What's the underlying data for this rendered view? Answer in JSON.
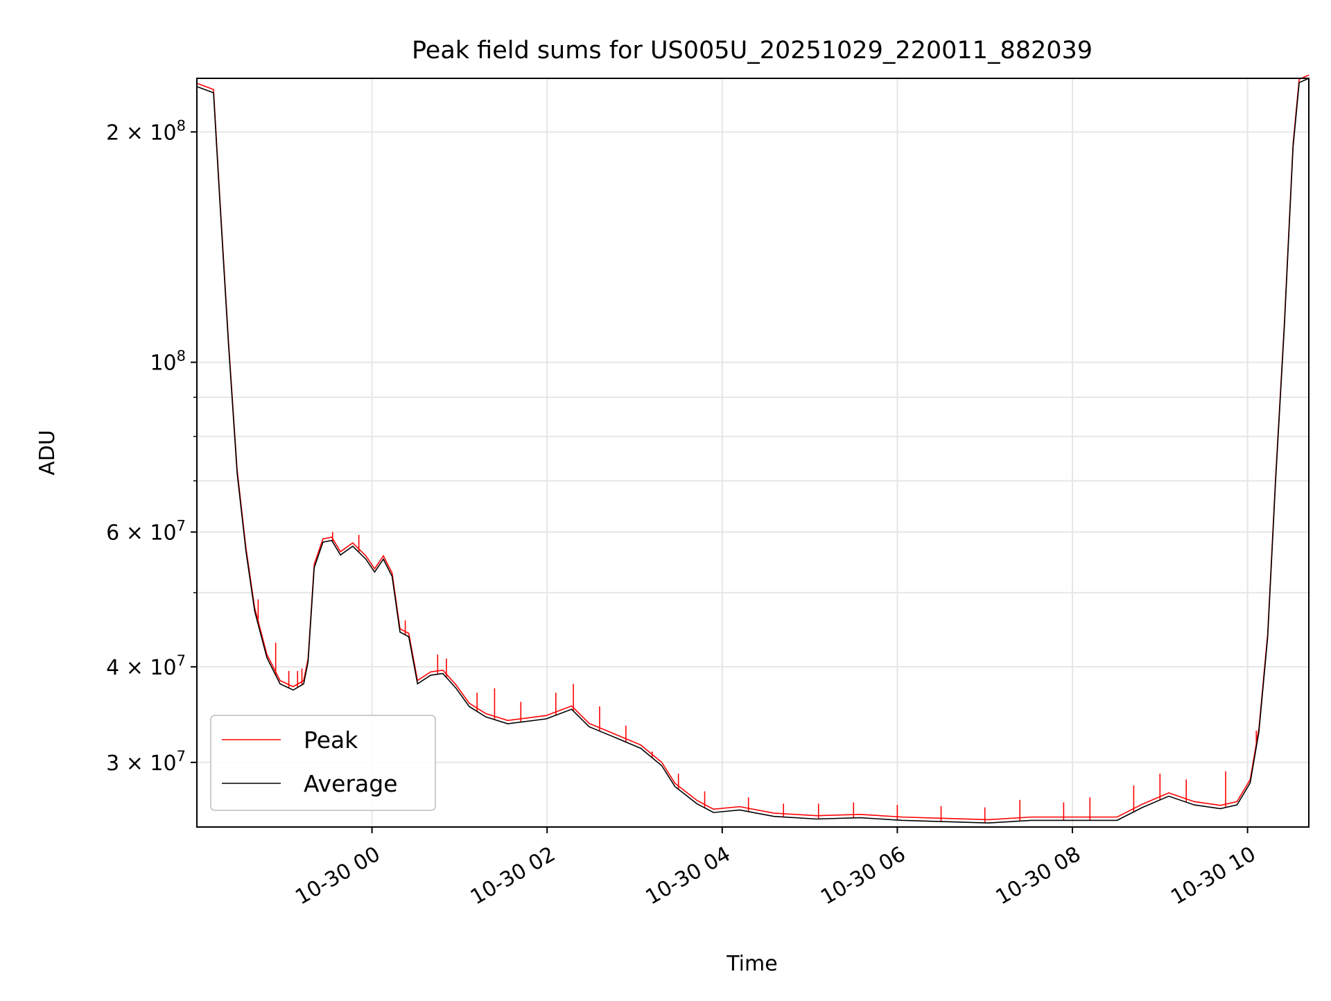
{
  "chart_data": {
    "type": "line",
    "title": "Peak field sums for US005U_20251029_220011_882039",
    "xlabel": "Time",
    "ylabel": "ADU",
    "x_units": "hours relative to 10-30 00:00",
    "xlim": [
      -2.0,
      10.7
    ],
    "ylim": [
      24700000,
      235000000
    ],
    "yscale": "log",
    "grid": true,
    "legend": {
      "placement": "lower-left",
      "entries": [
        {
          "label": "Peak",
          "color": "#ff0000"
        },
        {
          "label": "Average",
          "color": "#000000"
        }
      ]
    },
    "xticks": [
      {
        "value": 0,
        "label": "10-30 00"
      },
      {
        "value": 2,
        "label": "10-30 02"
      },
      {
        "value": 4,
        "label": "10-30 04"
      },
      {
        "value": 6,
        "label": "10-30 06"
      },
      {
        "value": 8,
        "label": "10-30 08"
      },
      {
        "value": 10,
        "label": "10-30 10"
      }
    ],
    "yticks_major": [
      {
        "value": 200000000,
        "base": "2 × 10",
        "exp": "8"
      },
      {
        "value": 100000000,
        "base": "10",
        "exp": "8"
      },
      {
        "value": 60000000,
        "base": "6 × 10",
        "exp": "7"
      },
      {
        "value": 40000000,
        "base": "4 × 10",
        "exp": "7"
      },
      {
        "value": 30000000,
        "base": "3 × 10",
        "exp": "7"
      }
    ],
    "yticks_minor": [
      50000000,
      70000000,
      80000000,
      90000000
    ],
    "series": [
      {
        "name": "Average",
        "color": "#000000",
        "points": [
          [
            -1.99,
            229000000.0
          ],
          [
            -1.81,
            225000000.0
          ],
          [
            -1.74,
            164000000.0
          ],
          [
            -1.64,
            106000000.0
          ],
          [
            -1.54,
            71600000.0
          ],
          [
            -1.44,
            56700000.0
          ],
          [
            -1.34,
            47300000.0
          ],
          [
            -1.2,
            41100000.0
          ],
          [
            -1.05,
            38000000.0
          ],
          [
            -0.9,
            37300000.0
          ],
          [
            -0.78,
            38000000.0
          ],
          [
            -0.73,
            40600000.0
          ],
          [
            -0.66,
            53900000.0
          ],
          [
            -0.56,
            58200000.0
          ],
          [
            -0.46,
            58500000.0
          ],
          [
            -0.36,
            56000000.0
          ],
          [
            -0.22,
            57500000.0
          ],
          [
            -0.07,
            55300000.0
          ],
          [
            0.03,
            53200000.0
          ],
          [
            0.13,
            55300000.0
          ],
          [
            0.23,
            52500000.0
          ],
          [
            0.32,
            44400000.0
          ],
          [
            0.42,
            43800000.0
          ],
          [
            0.52,
            38000000.0
          ],
          [
            0.67,
            39000000.0
          ],
          [
            0.81,
            39200000.0
          ],
          [
            0.96,
            37500000.0
          ],
          [
            1.11,
            35500000.0
          ],
          [
            1.3,
            34400000.0
          ],
          [
            1.55,
            33700000.0
          ],
          [
            1.99,
            34200000.0
          ],
          [
            2.28,
            35200000.0
          ],
          [
            2.48,
            33400000.0
          ],
          [
            2.73,
            32500000.0
          ],
          [
            3.07,
            31300000.0
          ],
          [
            3.31,
            29700000.0
          ],
          [
            3.46,
            27900000.0
          ],
          [
            3.71,
            26500000.0
          ],
          [
            3.9,
            25800000.0
          ],
          [
            4.2,
            26000000.0
          ],
          [
            4.59,
            25500000.0
          ],
          [
            5.08,
            25300000.0
          ],
          [
            5.57,
            25400000.0
          ],
          [
            6.06,
            25200000.0
          ],
          [
            6.55,
            25100000.0
          ],
          [
            7.04,
            25000000.0
          ],
          [
            7.53,
            25200000.0
          ],
          [
            8.02,
            25200000.0
          ],
          [
            8.51,
            25200000.0
          ],
          [
            8.8,
            26200000.0
          ],
          [
            9.1,
            27100000.0
          ],
          [
            9.39,
            26400000.0
          ],
          [
            9.69,
            26100000.0
          ],
          [
            9.88,
            26400000.0
          ],
          [
            10.03,
            28200000.0
          ],
          [
            10.13,
            32900000.0
          ],
          [
            10.23,
            43700000.0
          ],
          [
            10.32,
            69800000.0
          ],
          [
            10.42,
            111000000.0
          ],
          [
            10.52,
            191000000.0
          ],
          [
            10.59,
            232000000.0
          ],
          [
            10.7,
            235000000.0
          ]
        ]
      },
      {
        "name": "Peak",
        "color": "#ff0000",
        "spikes": [
          [
            -1.3,
            49000000.0
          ],
          [
            -1.1,
            43000000.0
          ],
          [
            -0.95,
            39500000.0
          ],
          [
            -0.85,
            39500000.0
          ],
          [
            -0.8,
            39800000.0
          ],
          [
            -0.45,
            60000000.0
          ],
          [
            -0.15,
            59500000.0
          ],
          [
            0.38,
            46000000.0
          ],
          [
            0.75,
            41500000.0
          ],
          [
            0.85,
            41000000.0
          ],
          [
            1.2,
            37000000.0
          ],
          [
            1.4,
            37500000.0
          ],
          [
            1.7,
            36000000.0
          ],
          [
            2.1,
            37000000.0
          ],
          [
            2.3,
            38000000.0
          ],
          [
            2.6,
            35500000.0
          ],
          [
            2.9,
            33500000.0
          ],
          [
            3.2,
            31000000.0
          ],
          [
            3.5,
            29000000.0
          ],
          [
            3.8,
            27500000.0
          ],
          [
            4.3,
            27000000.0
          ],
          [
            4.7,
            26500000.0
          ],
          [
            5.1,
            26500000.0
          ],
          [
            5.5,
            26600000.0
          ],
          [
            6.0,
            26400000.0
          ],
          [
            6.5,
            26300000.0
          ],
          [
            7.0,
            26200000.0
          ],
          [
            7.4,
            26800000.0
          ],
          [
            7.9,
            26600000.0
          ],
          [
            8.2,
            27000000.0
          ],
          [
            8.7,
            28000000.0
          ],
          [
            9.0,
            29000000.0
          ],
          [
            9.3,
            28500000.0
          ],
          [
            9.75,
            29200000.0
          ],
          [
            10.1,
            33000000.0
          ]
        ]
      }
    ]
  }
}
